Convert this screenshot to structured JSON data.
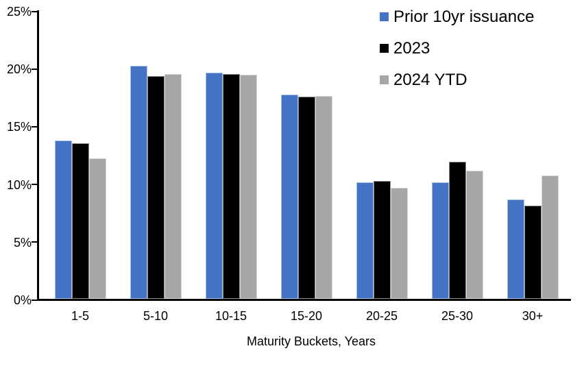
{
  "chart_data": {
    "type": "bar",
    "title": "",
    "xlabel": "Maturity Buckets, Years",
    "ylabel": "",
    "categories": [
      "1-5",
      "5-10",
      "10-15",
      "15-20",
      "20-25",
      "25-30",
      "30+"
    ],
    "series": [
      {
        "name": "Prior 10yr issuance",
        "color": "#4472C4",
        "values": [
          13.7,
          20.2,
          19.6,
          17.7,
          10.1,
          10.1,
          8.6
        ]
      },
      {
        "name": "2023",
        "color": "#000000",
        "values": [
          13.5,
          19.3,
          19.5,
          17.5,
          10.2,
          11.9,
          8.1
        ]
      },
      {
        "name": "2024 YTD",
        "color": "#A6A6A6",
        "values": [
          12.2,
          19.5,
          19.4,
          17.6,
          9.6,
          11.1,
          10.7
        ]
      }
    ],
    "ylim": [
      0,
      25
    ],
    "ytick_step": 5,
    "ytick_labels": [
      "0%",
      "5%",
      "10%",
      "15%",
      "20%",
      "25%"
    ],
    "grid": false,
    "legend_position": "top-right",
    "axis_color": "#000000"
  }
}
